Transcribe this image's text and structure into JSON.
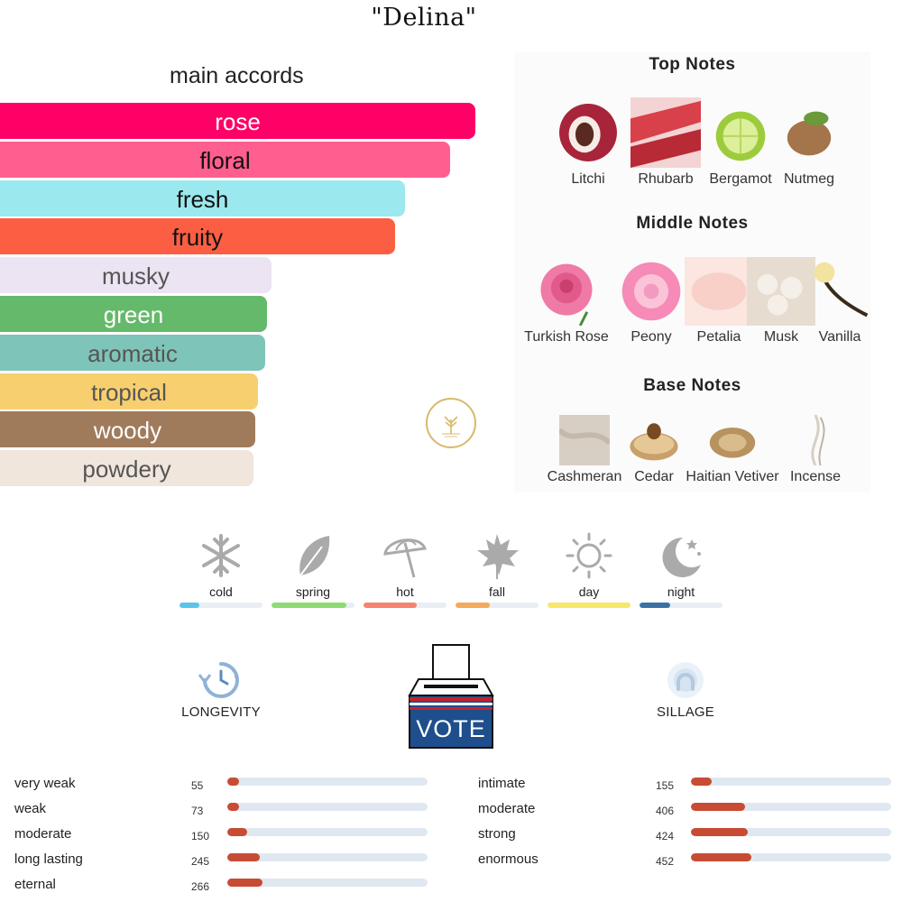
{
  "title": "\"Delina\"",
  "accords": {
    "heading": "main accords",
    "items": [
      {
        "label": "rose",
        "strength": 1.0,
        "color": "#ff0066",
        "text_color": "#ffffff"
      },
      {
        "label": "floral",
        "strength": 0.946,
        "color": "#ff5f8f",
        "text_color": "#111111"
      },
      {
        "label": "fresh",
        "strength": 0.852,
        "color": "#9be8ee",
        "text_color": "#111111"
      },
      {
        "label": "fruity",
        "strength": 0.832,
        "color": "#fc5e43",
        "text_color": "#111111"
      },
      {
        "label": "musky",
        "strength": 0.571,
        "color": "#ece4f2",
        "text_color": "#555555"
      },
      {
        "label": "green",
        "strength": 0.562,
        "color": "#65b96a",
        "text_color": "#ffffff"
      },
      {
        "label": "aromatic",
        "strength": 0.558,
        "color": "#7fc4b8",
        "text_color": "#555555"
      },
      {
        "label": "tropical",
        "strength": 0.542,
        "color": "#f8cf6f",
        "text_color": "#555555"
      },
      {
        "label": "woody",
        "strength": 0.537,
        "color": "#a07b5b",
        "text_color": "#ffffff"
      },
      {
        "label": "powdery",
        "strength": 0.533,
        "color": "#f1e6dc",
        "text_color": "#555555"
      }
    ]
  },
  "notes": {
    "top": {
      "heading": "Top Notes",
      "items": [
        {
          "label": "Litchi",
          "icon": "litchi-icon",
          "color": "#a8243a"
        },
        {
          "label": "Rhubarb",
          "icon": "rhubarb-icon",
          "color": "#d8404a"
        },
        {
          "label": "Bergamot",
          "icon": "bergamot-icon",
          "color": "#9ccc3c"
        },
        {
          "label": "Nutmeg",
          "icon": "nutmeg-icon",
          "color": "#a4744a"
        }
      ]
    },
    "middle": {
      "heading": "Middle Notes",
      "items": [
        {
          "label": "Turkish Rose",
          "icon": "turkish-rose-icon",
          "color": "#f07aa6"
        },
        {
          "label": "Peony",
          "icon": "peony-icon",
          "color": "#f58bb6"
        },
        {
          "label": "Petalia",
          "icon": "petalia-icon",
          "color": "#f8d0c8"
        },
        {
          "label": "Musk",
          "icon": "musk-icon",
          "color": "#e6dccf"
        },
        {
          "label": "Vanilla",
          "icon": "vanilla-icon",
          "color": "#f3e3a0"
        }
      ]
    },
    "base": {
      "heading": "Base Notes",
      "items": [
        {
          "label": "Cashmeran",
          "icon": "cashmeran-icon",
          "color": "#d8cfc4"
        },
        {
          "label": "Cedar",
          "icon": "cedar-icon",
          "color": "#c9a06a"
        },
        {
          "label": "Haitian Vetiver",
          "icon": "haitian-vetiver-icon",
          "color": "#b8925f"
        },
        {
          "label": "Incense",
          "icon": "incense-icon",
          "color": "#d8cfc4"
        }
      ]
    }
  },
  "seasons": [
    {
      "label": "cold",
      "icon": "snowflake-icon",
      "value": 0.24,
      "color": "#5bc4ea"
    },
    {
      "label": "spring",
      "icon": "leaf-icon",
      "value": 0.9,
      "color": "#8ddb72"
    },
    {
      "label": "hot",
      "icon": "umbrella-icon",
      "value": 0.64,
      "color": "#f5846c"
    },
    {
      "label": "fall",
      "icon": "maple-leaf-icon",
      "value": 0.41,
      "color": "#f5a95c"
    },
    {
      "label": "day",
      "icon": "sun-icon",
      "value": 1.0,
      "color": "#f7e76a"
    },
    {
      "label": "night",
      "icon": "moon-icon",
      "value": 0.37,
      "color": "#3a72a6"
    }
  ],
  "longevity": {
    "title": "LONGEVITY",
    "icon": "clock-icon",
    "rows": [
      {
        "label": "very weak",
        "count": "55",
        "value": 55
      },
      {
        "label": "weak",
        "count": "73",
        "value": 73
      },
      {
        "label": "moderate",
        "count": "150",
        "value": 150
      },
      {
        "label": "long lasting",
        "count": "245",
        "value": 245
      },
      {
        "label": "eternal",
        "count": "266",
        "value": 266
      }
    ]
  },
  "sillage": {
    "title": "SILLAGE",
    "icon": "sillage-icon",
    "rows": [
      {
        "label": "intimate",
        "count": "155",
        "value": 155
      },
      {
        "label": "moderate",
        "count": "406",
        "value": 406
      },
      {
        "label": "strong",
        "count": "424",
        "value": 424
      },
      {
        "label": "enormous",
        "count": "452",
        "value": 452
      }
    ]
  },
  "vote": {
    "label": "VOTE",
    "icon": "ballot-box-icon"
  },
  "logo": {
    "icon": "tree-logo-icon",
    "color": "#d9b96a"
  }
}
